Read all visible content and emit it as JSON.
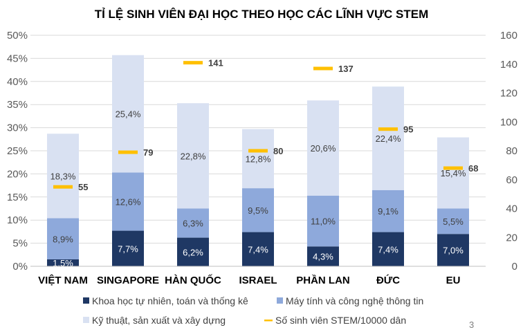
{
  "chart_data": {
    "type": "bar",
    "stacked": true,
    "title": "TỈ LỆ SINH VIÊN ĐẠI HỌC THEO HỌC CÁC LĨNH VỰC STEM",
    "categories": [
      "VIỆT NAM",
      "SINGAPORE",
      "HÀN QUỐC",
      "ISRAEL",
      "PHẦN LAN",
      "ĐỨC",
      "EU"
    ],
    "series": [
      {
        "name": "Khoa học tự nhiên, toán và thống kê",
        "color": "#1F3864",
        "values": [
          1.5,
          7.7,
          6.2,
          7.4,
          4.3,
          7.4,
          7.0
        ],
        "labels": [
          "1,5%",
          "7,7%",
          "6,2%",
          "7,4%",
          "4,3%",
          "7,4%",
          "7,0%"
        ]
      },
      {
        "name": "Máy tính và công nghệ thông tin",
        "color": "#8EA9DB",
        "values": [
          8.9,
          12.6,
          6.3,
          9.5,
          11.0,
          9.1,
          5.5
        ],
        "labels": [
          "8,9%",
          "12,6%",
          "6,3%",
          "9,5%",
          "11,0%",
          "9,1%",
          "5,5%"
        ]
      },
      {
        "name": "Kỹ thuật, sản xuất và xây dựng",
        "color": "#D9E1F2",
        "values": [
          18.3,
          25.4,
          22.8,
          12.8,
          20.6,
          22.4,
          15.4
        ],
        "labels": [
          "18,3%",
          "25,4%",
          "22,8%",
          "12,8%",
          "20,6%",
          "22,4%",
          "15,4%"
        ]
      }
    ],
    "secondary_series": {
      "name": "Số sinh viên STEM/10000 dân",
      "type": "marker",
      "color": "#FFC000",
      "axis": "right",
      "values": [
        55,
        79,
        141,
        80,
        137,
        95,
        68
      ],
      "labels": [
        "55",
        "79",
        "141",
        "80",
        "137",
        "95",
        "68"
      ]
    },
    "y_left": {
      "ylim": [
        0,
        50
      ],
      "ticks": [
        "0%",
        "5%",
        "10%",
        "15%",
        "20%",
        "25%",
        "30%",
        "35%",
        "40%",
        "45%",
        "50%"
      ]
    },
    "y_right": {
      "ylim": [
        0,
        160
      ],
      "ticks": [
        "0",
        "20",
        "40",
        "60",
        "80",
        "100",
        "120",
        "140",
        "160"
      ]
    },
    "grid": true,
    "legend_position": "bottom"
  },
  "page_number": "3"
}
